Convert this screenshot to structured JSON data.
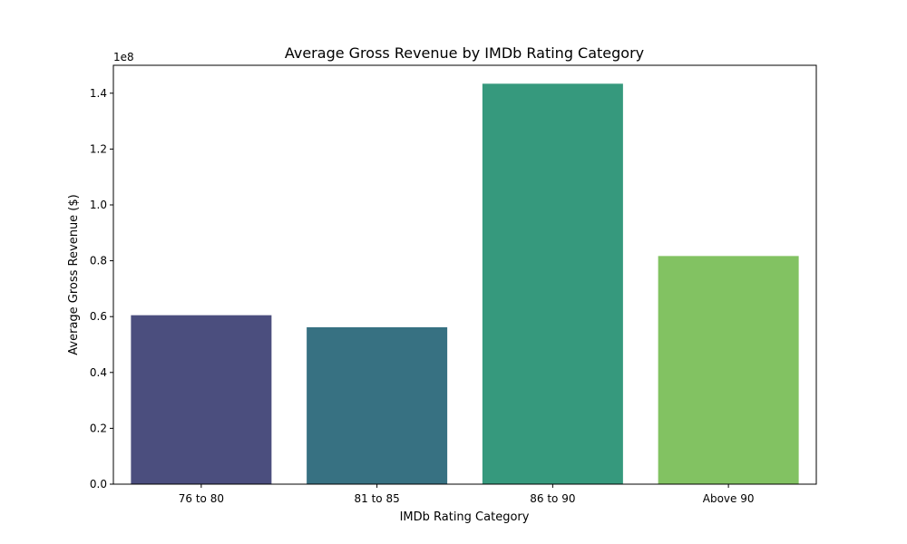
{
  "chart_data": {
    "type": "bar",
    "title": "Average Gross Revenue by IMDb Rating Category",
    "xlabel": "IMDb Rating Category",
    "ylabel": "Average Gross Revenue ($)",
    "categories": [
      "76 to 80",
      "81 to 85",
      "86 to 90",
      "Above 90"
    ],
    "values": [
      60500000,
      56200000,
      143400000,
      81700000
    ],
    "colors": [
      "#4b4e7e",
      "#377182",
      "#36997d",
      "#82c262"
    ],
    "ylim": [
      0,
      150000000
    ],
    "yticks": [
      0,
      20000000,
      40000000,
      60000000,
      80000000,
      100000000,
      120000000,
      140000000
    ],
    "ytick_labels": [
      "0.0",
      "0.2",
      "0.4",
      "0.6",
      "0.8",
      "1.0",
      "1.2",
      "1.4"
    ],
    "y_offset_label": "1e8",
    "grid": false,
    "legend": "none"
  }
}
